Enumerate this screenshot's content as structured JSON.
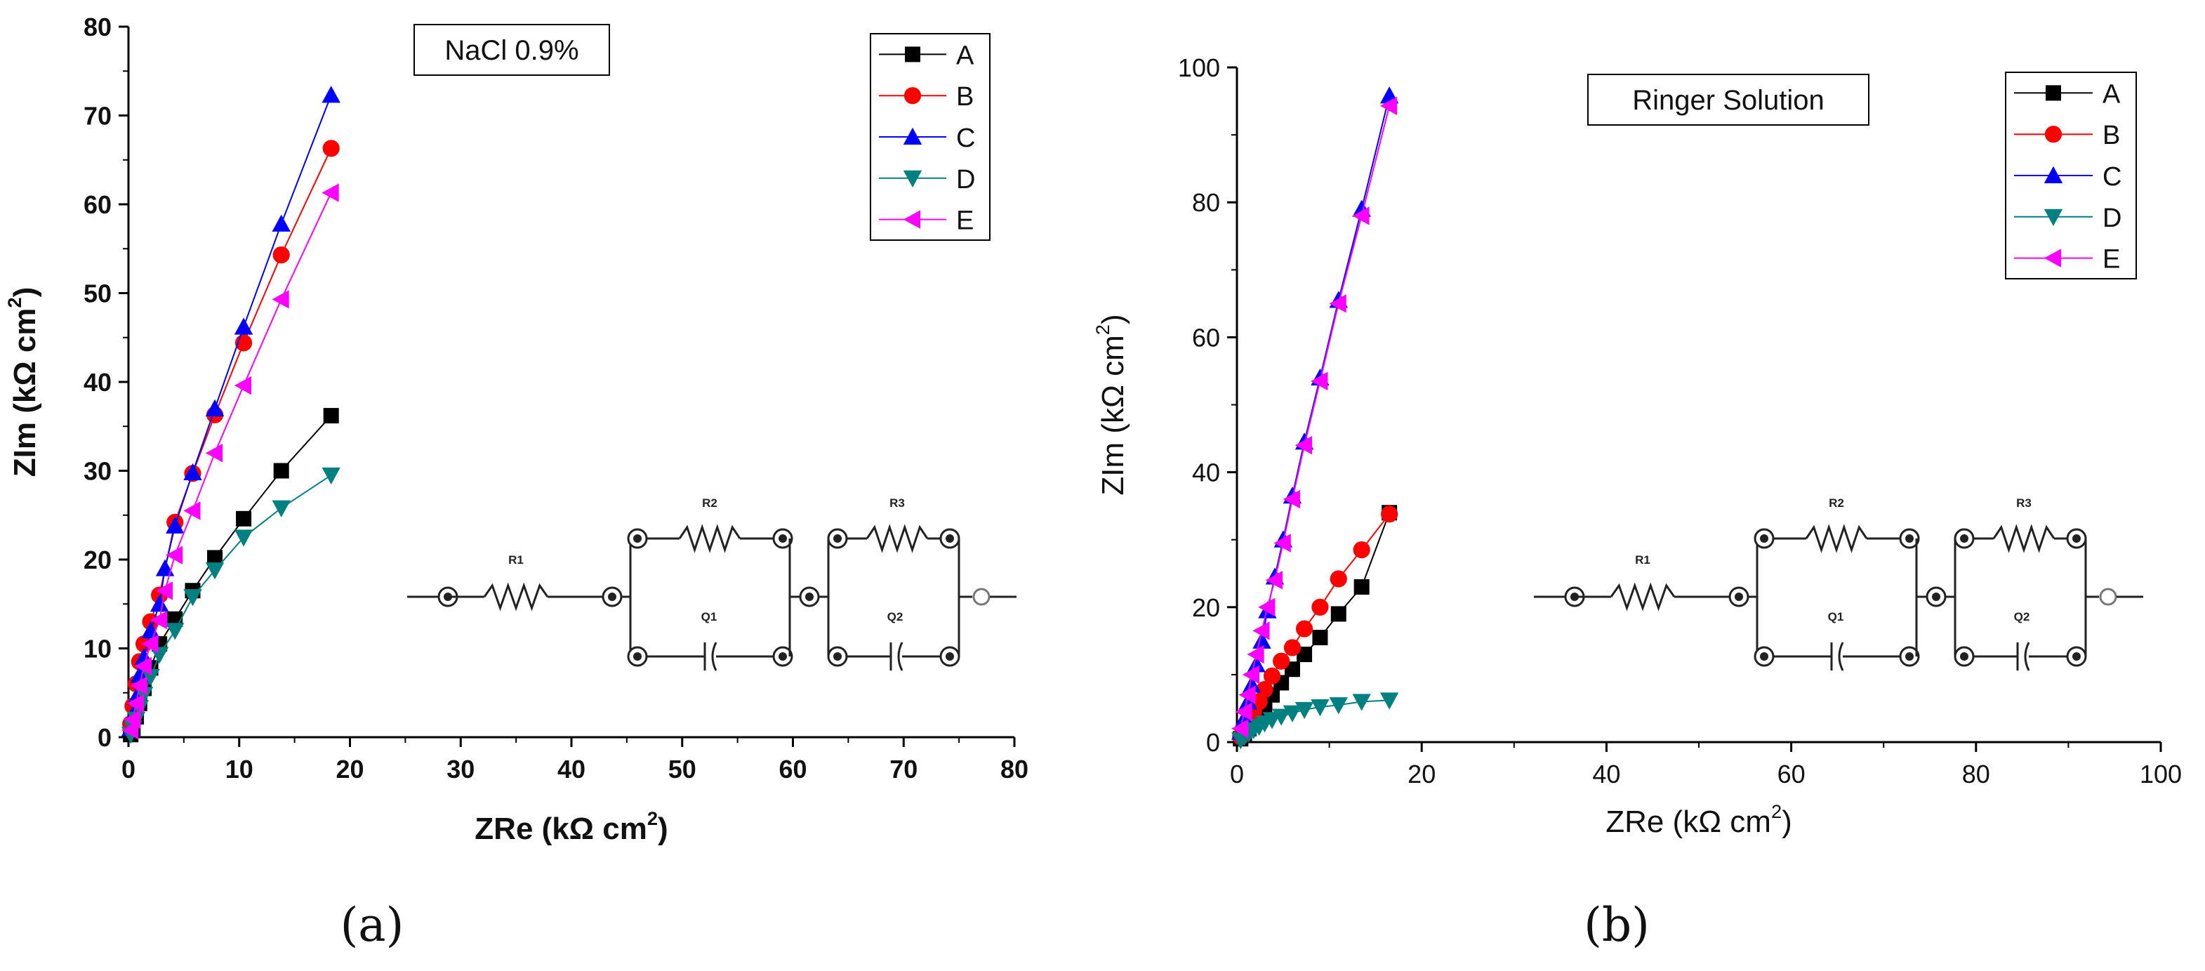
{
  "panels": [
    {
      "label": "(a)"
    },
    {
      "label": "(b)"
    }
  ],
  "circuit": {
    "labels": [
      "R1",
      "R2",
      "R3",
      "Q1",
      "Q2"
    ]
  },
  "chart_data": [
    {
      "type": "scatter",
      "title": "NaCl 0.9%",
      "xlabel": "ZRe (kΩ cm²)",
      "ylabel": "ZIm (kΩ cm²)",
      "xlim": [
        0,
        80
      ],
      "ylim": [
        0,
        80
      ],
      "xticks": [
        0,
        10,
        20,
        30,
        40,
        50,
        60,
        70,
        80
      ],
      "yticks": [
        0,
        10,
        20,
        30,
        40,
        50,
        60,
        70,
        80
      ],
      "legend_position": "top-right",
      "series": [
        {
          "name": "A",
          "color": "#000000",
          "marker": "square",
          "x": [
            0.2,
            0.4,
            0.7,
            1.0,
            1.4,
            2.0,
            2.8,
            4.2,
            5.8,
            7.8,
            10.4,
            13.8,
            18.3
          ],
          "y": [
            0.3,
            1.0,
            2.3,
            3.8,
            5.5,
            7.8,
            10.5,
            13.3,
            16.5,
            20.2,
            24.6,
            30.0,
            36.2
          ]
        },
        {
          "name": "B",
          "color": "#ff0000",
          "marker": "circle",
          "x": [
            0.2,
            0.4,
            0.7,
            1.0,
            1.4,
            2.0,
            2.8,
            4.2,
            5.8,
            7.8,
            10.4,
            13.8,
            18.3
          ],
          "y": [
            1.5,
            3.5,
            6.0,
            8.5,
            10.5,
            13.0,
            16.0,
            24.2,
            29.7,
            36.3,
            44.4,
            54.3,
            66.3
          ]
        },
        {
          "name": "C",
          "color": "#0000ff",
          "marker": "triangle-up",
          "x": [
            0.2,
            0.4,
            0.7,
            1.0,
            1.4,
            2.0,
            2.8,
            3.3,
            4.2,
            5.8,
            7.8,
            10.4,
            13.8,
            18.3
          ],
          "y": [
            1.0,
            2.5,
            4.5,
            7.0,
            9.0,
            12.0,
            15.0,
            19.0,
            23.8,
            29.8,
            37.0,
            46.2,
            57.8,
            72.3
          ]
        },
        {
          "name": "D",
          "color": "#008080",
          "marker": "triangle-down",
          "x": [
            0.2,
            0.4,
            0.7,
            1.0,
            1.4,
            2.0,
            2.8,
            4.2,
            5.8,
            7.8,
            10.4,
            13.8,
            18.3
          ],
          "y": [
            0.3,
            1.0,
            2.0,
            3.3,
            4.8,
            6.8,
            9.3,
            12.0,
            15.8,
            18.8,
            22.5,
            25.8,
            29.5
          ]
        },
        {
          "name": "E",
          "color": "#ff00ff",
          "marker": "triangle-left",
          "x": [
            0.2,
            0.4,
            0.7,
            1.0,
            1.4,
            2.0,
            2.8,
            3.3,
            4.2,
            5.8,
            7.8,
            10.4,
            13.8,
            18.3
          ],
          "y": [
            0.8,
            2.0,
            3.8,
            5.8,
            8.0,
            10.5,
            13.2,
            16.5,
            20.5,
            25.5,
            32.0,
            39.6,
            49.3,
            61.3
          ]
        }
      ]
    },
    {
      "type": "scatter",
      "title": "Ringer Solution",
      "xlabel": "ZRe (kΩ cm²)",
      "ylabel": "ZIm (kΩ cm²)",
      "xlim": [
        0,
        100
      ],
      "ylim": [
        0,
        100
      ],
      "xticks": [
        0,
        20,
        40,
        60,
        80,
        100
      ],
      "yticks": [
        0,
        20,
        40,
        60,
        80,
        100
      ],
      "legend_position": "top-right",
      "series": [
        {
          "name": "A",
          "color": "#000000",
          "marker": "square",
          "x": [
            0.4,
            0.8,
            1.3,
            1.8,
            2.4,
            3.0,
            3.8,
            4.8,
            6.0,
            7.3,
            9.0,
            11.0,
            13.5,
            16.5
          ],
          "y": [
            0.5,
            1.2,
            2.0,
            3.0,
            4.2,
            5.5,
            7.0,
            8.8,
            10.8,
            13.0,
            15.5,
            19.0,
            23.0,
            34.0
          ]
        },
        {
          "name": "B",
          "color": "#ff0000",
          "marker": "circle",
          "x": [
            0.4,
            0.8,
            1.3,
            1.8,
            2.4,
            3.0,
            3.8,
            4.8,
            6.0,
            7.3,
            9.0,
            11.0,
            13.5,
            16.5
          ],
          "y": [
            0.8,
            1.8,
            3.0,
            4.5,
            6.0,
            7.8,
            9.8,
            12.0,
            14.0,
            16.8,
            20.0,
            24.2,
            28.5,
            33.8
          ]
        },
        {
          "name": "C",
          "color": "#0000ff",
          "marker": "triangle-up",
          "x": [
            0.4,
            0.8,
            1.2,
            1.6,
            2.1,
            2.7,
            3.3,
            4.1,
            5.0,
            6.0,
            7.3,
            9.0,
            11.0,
            13.5,
            16.5
          ],
          "y": [
            1.5,
            3.5,
            6.0,
            8.5,
            11.5,
            15.0,
            19.5,
            24.5,
            30.0,
            36.5,
            44.5,
            54.0,
            65.5,
            79.0,
            95.8
          ]
        },
        {
          "name": "D",
          "color": "#008080",
          "marker": "triangle-down",
          "x": [
            0.4,
            0.8,
            1.3,
            1.8,
            2.4,
            3.0,
            3.8,
            4.8,
            6.0,
            7.3,
            9.0,
            11.0,
            13.5,
            16.5
          ],
          "y": [
            0.3,
            0.8,
            1.3,
            1.8,
            2.3,
            2.8,
            3.3,
            3.8,
            4.3,
            4.8,
            5.2,
            5.5,
            6.0,
            6.2
          ]
        },
        {
          "name": "E",
          "color": "#ff00ff",
          "marker": "triangle-left",
          "x": [
            0.4,
            0.8,
            1.2,
            1.6,
            2.1,
            2.7,
            3.3,
            4.1,
            5.0,
            6.0,
            7.3,
            9.0,
            11.0,
            13.5,
            16.5
          ],
          "y": [
            2.0,
            4.5,
            7.0,
            10.0,
            13.0,
            16.5,
            20.0,
            24.0,
            29.5,
            36.0,
            44.0,
            53.5,
            65.0,
            78.0,
            94.3
          ]
        }
      ]
    }
  ]
}
